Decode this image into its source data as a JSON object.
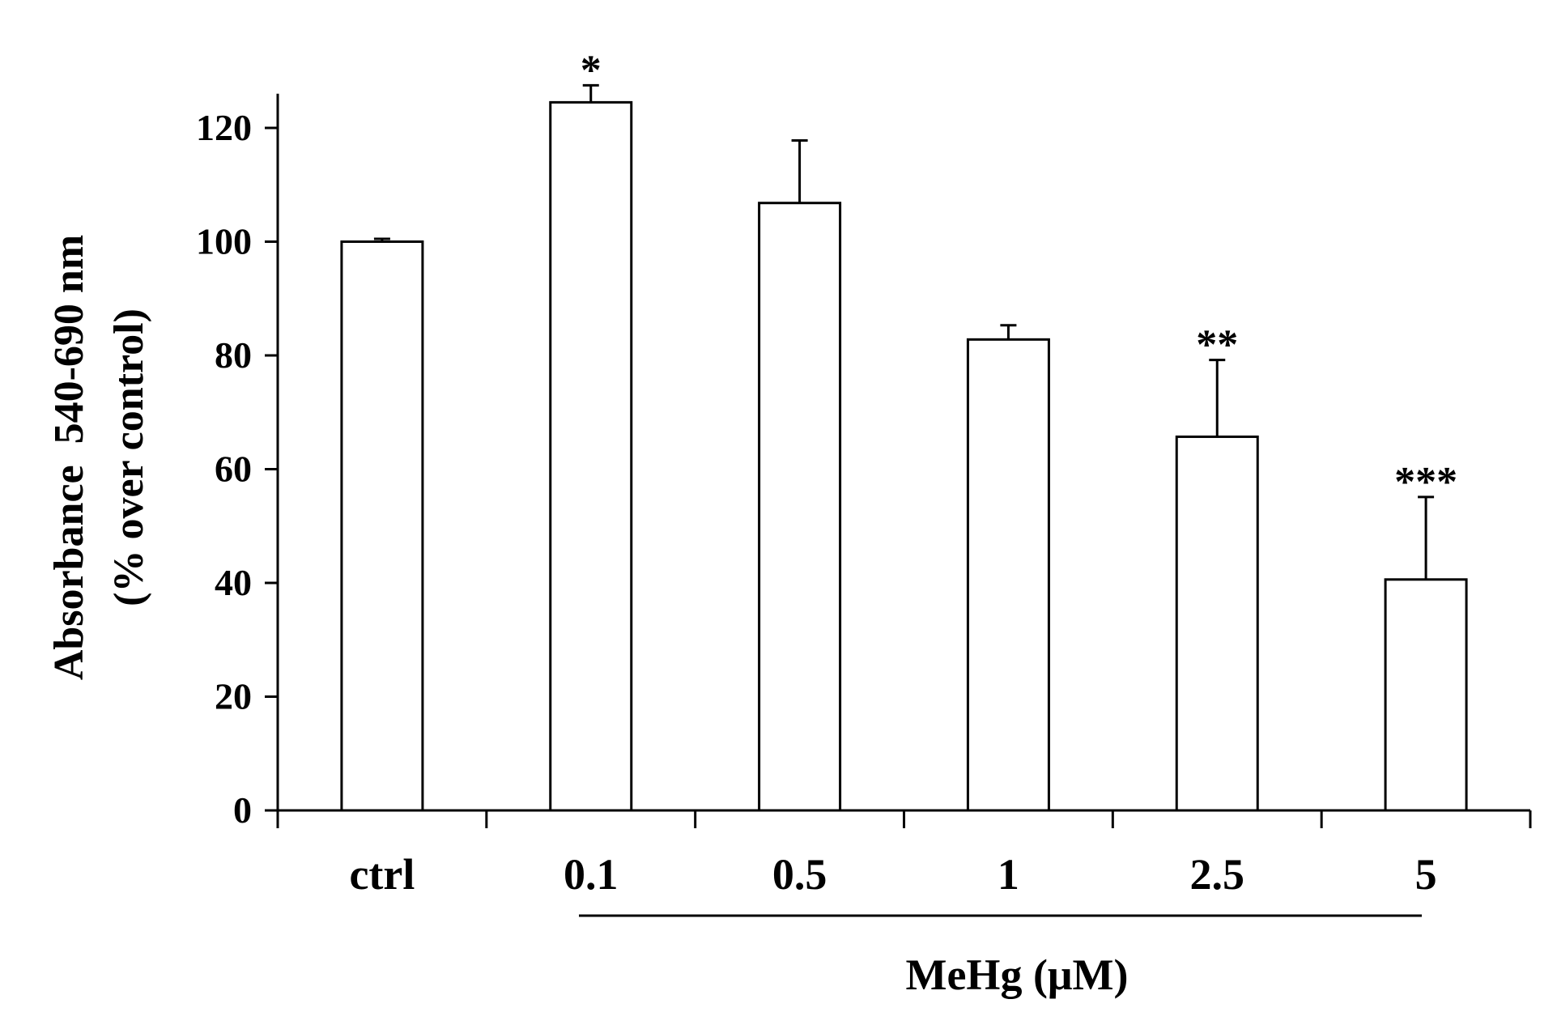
{
  "chart_data": {
    "type": "bar",
    "categories": [
      "ctrl",
      "0.1",
      "0.5",
      "1",
      "2.5",
      "5"
    ],
    "values": [
      100,
      124.5,
      106.8,
      82.8,
      65.7,
      40.6
    ],
    "errors": [
      0.5,
      3,
      11,
      2.5,
      13.5,
      14.5
    ],
    "significance": [
      "",
      "*",
      "",
      "",
      "**",
      "***"
    ],
    "ylabel_line1": "Absorbance  540-690 nm",
    "ylabel_line2": "(% over control)",
    "xlabel": "MeHg (μM)",
    "ylim": [
      0,
      130
    ],
    "yticks": [
      0,
      20,
      40,
      60,
      80,
      100,
      120
    ],
    "grid": false,
    "bar_fill": "#ffffff",
    "bar_stroke": "#000000"
  }
}
